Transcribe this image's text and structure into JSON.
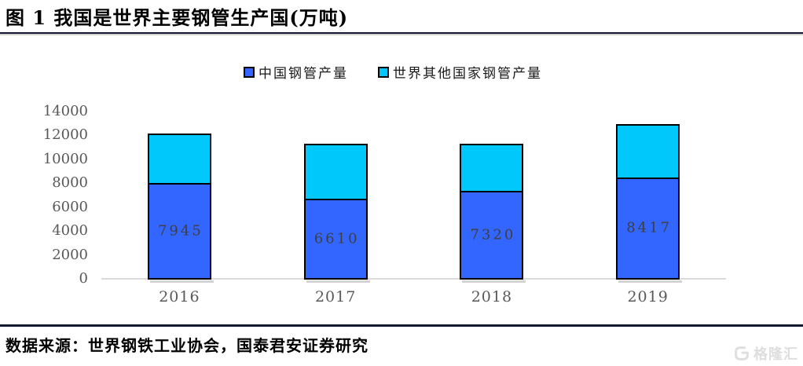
{
  "header": {
    "title": "图 1 我国是世界主要钢管生产国(万吨)"
  },
  "chart_data": {
    "type": "bar",
    "stacked": true,
    "title": "图 1 我国是世界主要钢管生产国(万吨)",
    "unit": "万吨",
    "categories": [
      "2016",
      "2017",
      "2018",
      "2019"
    ],
    "series": [
      {
        "name": "中国钢管产量",
        "color": "#3366ff",
        "values": [
          7945,
          6610,
          7320,
          8417
        ],
        "data_labels": true
      },
      {
        "name": "世界其他国家钢管产量",
        "color": "#00c8fa",
        "values": [
          4250,
          4700,
          4100,
          4600
        ],
        "data_labels": false
      }
    ],
    "xlabel": "",
    "ylabel": "",
    "ylim": [
      0,
      14000
    ],
    "ytick_step": 2000,
    "grid": false,
    "legend_position": "top",
    "bar_outline_color": "#000000",
    "axis_label_color": "#595959",
    "data_label_color": "#3f3f3f"
  },
  "footer": {
    "source": "数据来源：世界钢铁工业协会，国泰君安证券研究",
    "watermark": "格隆汇"
  }
}
